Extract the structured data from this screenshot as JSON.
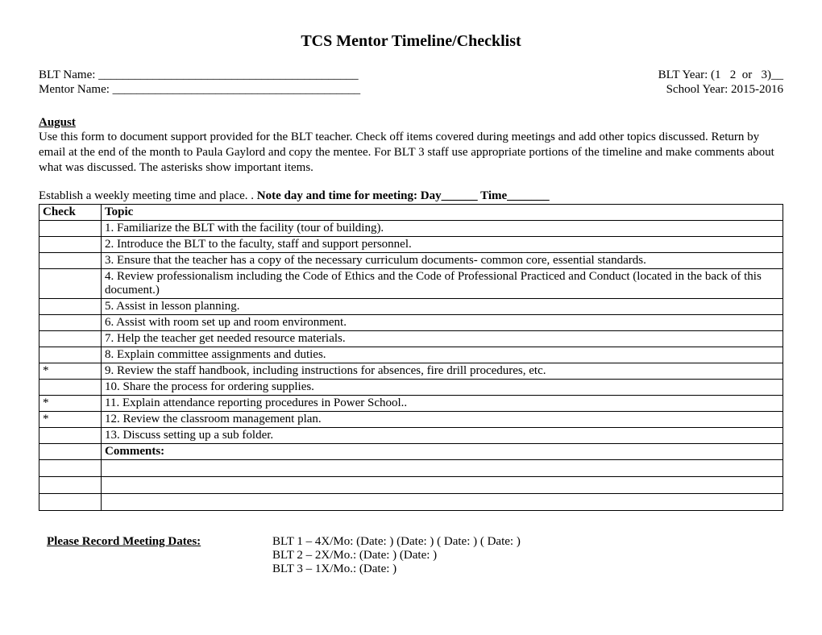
{
  "title": "TCS Mentor Timeline/Checklist",
  "header": {
    "blt_name_label": "BLT Name: ___________________________________________",
    "blt_year_label": "BLT Year: (1   2  or   3)__",
    "mentor_name_label": "Mentor Name: _________________________________________",
    "school_year_label": "School Year: 2015-2016"
  },
  "section": {
    "month": "August",
    "instructions": "Use this form to document support provided for the BLT teacher. Check off items covered during meetings and add other topics discussed. Return by email at the end of the month to Paula Gaylord and copy the mentee.  For BLT 3 staff use appropriate portions of the timeline and make comments about what was discussed.  The asterisks show important items.",
    "meeting_prefix": "Establish a weekly meeting time and place. .  ",
    "meeting_bold": "Note day and time for meeting: Day______     Time_______"
  },
  "table": {
    "headers": {
      "check": "Check",
      "topic": "Topic"
    },
    "rows": [
      {
        "check": "",
        "topic": "1. Familiarize the BLT with the facility (tour of building)."
      },
      {
        "check": "",
        "topic": "2. Introduce the BLT to the faculty, staff and support personnel."
      },
      {
        "check": "",
        "topic": "3. Ensure that the teacher has a copy of the necessary curriculum documents- common core, essential standards."
      },
      {
        "check": "",
        "topic": "4. Review professionalism including the Code of Ethics and the Code of Professional Practiced and Conduct (located in the back of this document.)"
      },
      {
        "check": "",
        "topic": "5. Assist in lesson planning."
      },
      {
        "check": "",
        "topic": "6. Assist with room set up and room environment."
      },
      {
        "check": "",
        "topic": "7. Help the teacher get needed resource materials."
      },
      {
        "check": "",
        "topic": "8. Explain committee assignments and duties."
      },
      {
        "check": "*",
        "topic": "9. Review the staff handbook, including instructions for absences, fire drill procedures, etc."
      },
      {
        "check": "",
        "topic": "10. Share the process for ordering supplies."
      },
      {
        "check": "*",
        "topic": "11. Explain attendance reporting procedures in Power School.."
      },
      {
        "check": "*",
        "topic": "12. Review the classroom management plan."
      },
      {
        "check": "",
        "topic": "13. Discuss setting up a sub folder."
      }
    ],
    "comments_label": "Comments:",
    "empty_rows": 3
  },
  "meeting_dates": {
    "label": "Please Record Meeting Dates:",
    "lines": [
      "BLT 1 – 4X/Mo:  (Date:          )    (Date:          )    ( Date:         )    ( Date:        )",
      "BLT 2 – 2X/Mo.: (Date:          )    (Date:          )",
      "BLT 3 – 1X/Mo.:  (Date:         )"
    ]
  }
}
